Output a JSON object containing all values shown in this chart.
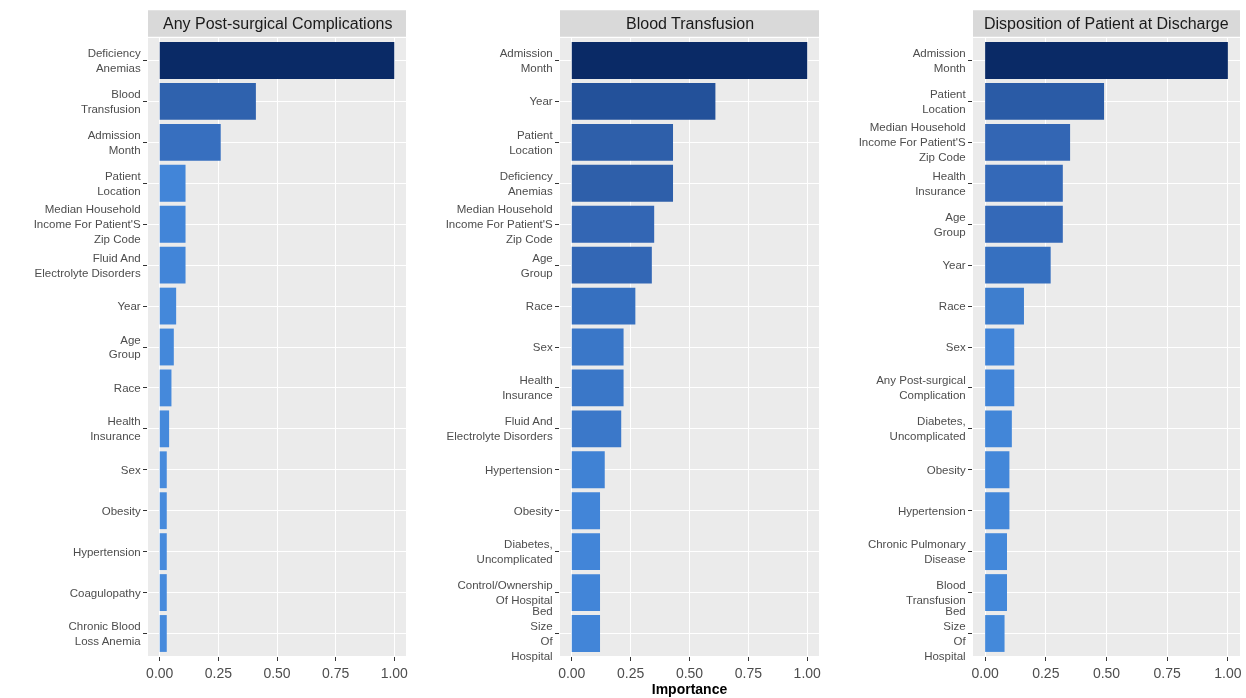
{
  "chart_data": [
    {
      "type": "bar",
      "orientation": "horizontal",
      "title": "Any Post-surgical Complications",
      "categories": [
        "Deficiency\nAnemias",
        "Blood\nTransfusion",
        "Admission\nMonth",
        "Patient\nLocation",
        "Median Household\nIncome For Patient'S\nZip Code",
        "Fluid And\nElectrolyte Disorders",
        "Year",
        "Age\nGroup",
        "Race",
        "Health\nInsurance",
        "Sex",
        "Obesity",
        "Hypertension",
        "Coagulopathy",
        "Chronic Blood\nLoss Anemia"
      ],
      "values": [
        1.0,
        0.41,
        0.26,
        0.11,
        0.11,
        0.11,
        0.07,
        0.06,
        0.05,
        0.04,
        0.03,
        0.03,
        0.03,
        0.03,
        0.03
      ],
      "colors": [
        "#0a2a66",
        "#2f62ae",
        "#376fbf",
        "#4285d8",
        "#4285d8",
        "#4285d8",
        "#4488da",
        "#4488da",
        "#4589db",
        "#4589db",
        "#468adc",
        "#468adc",
        "#468adc",
        "#468adc",
        "#468adc"
      ],
      "xlim": [
        -0.05,
        1.05
      ],
      "xticks": [
        {
          "value": 0,
          "label": "0.00"
        },
        {
          "value": 0.25,
          "label": "0.25"
        },
        {
          "value": 0.5,
          "label": "0.50"
        },
        {
          "value": 0.75,
          "label": "0.75"
        },
        {
          "value": 1,
          "label": "1.00"
        }
      ],
      "grid": true
    },
    {
      "type": "bar",
      "orientation": "horizontal",
      "title": "Blood Transfusion",
      "xlabel": "Importance",
      "categories": [
        "Admission\nMonth",
        "Year",
        "Patient\nLocation",
        "Deficiency\nAnemias",
        "Median Household\nIncome For Patient'S\nZip Code",
        "Age\nGroup",
        "Race",
        "Sex",
        "Health\nInsurance",
        "Fluid And\nElectrolyte Disorders",
        "Hypertension",
        "Obesity",
        "Diabetes,\nUncomplicated",
        "Control/Ownership\nOf Hospital",
        "Bed\nSize\nOf\nHospital"
      ],
      "values": [
        1.0,
        0.61,
        0.43,
        0.43,
        0.35,
        0.34,
        0.27,
        0.22,
        0.22,
        0.21,
        0.14,
        0.12,
        0.12,
        0.12,
        0.12
      ],
      "colors": [
        "#0a2a66",
        "#23519a",
        "#2e5faa",
        "#2e5faa",
        "#3366b4",
        "#3367b5",
        "#3670c0",
        "#3a77c8",
        "#3a77c8",
        "#3b78c9",
        "#4082d4",
        "#4285d8",
        "#4285d8",
        "#4285d8",
        "#4285d8"
      ],
      "xlim": [
        -0.05,
        1.05
      ],
      "xticks": [
        {
          "value": 0,
          "label": "0.00"
        },
        {
          "value": 0.25,
          "label": "0.25"
        },
        {
          "value": 0.5,
          "label": "0.50"
        },
        {
          "value": 0.75,
          "label": "0.75"
        },
        {
          "value": 1,
          "label": "1.00"
        }
      ],
      "grid": true
    },
    {
      "type": "bar",
      "orientation": "horizontal",
      "title": "Disposition of Patient at Discharge",
      "categories": [
        "Admission\nMonth",
        "Patient\nLocation",
        "Median Household\nIncome For Patient'S\nZip Code",
        "Health\nInsurance",
        "Age\nGroup",
        "Year",
        "Race",
        "Sex",
        "Any Post-surgical\nComplication",
        "Diabetes,\nUncomplicated",
        "Obesity",
        "Hypertension",
        "Chronic Pulmonary\nDisease",
        "Blood\nTransfusion",
        "Bed\nSize\nOf\nHospital"
      ],
      "values": [
        1.0,
        0.49,
        0.35,
        0.32,
        0.32,
        0.27,
        0.16,
        0.12,
        0.12,
        0.11,
        0.1,
        0.1,
        0.09,
        0.09,
        0.08
      ],
      "colors": [
        "#0a2a66",
        "#2a5ba6",
        "#3366b4",
        "#3469b8",
        "#3469b8",
        "#3670c0",
        "#3e7ece",
        "#4285d8",
        "#4285d8",
        "#4286d8",
        "#4387d9",
        "#4387d9",
        "#4388da",
        "#4388da",
        "#4489da"
      ],
      "xlim": [
        -0.05,
        1.05
      ],
      "xticks": [
        {
          "value": 0,
          "label": "0.00"
        },
        {
          "value": 0.25,
          "label": "0.25"
        },
        {
          "value": 0.5,
          "label": "0.50"
        },
        {
          "value": 0.75,
          "label": "0.75"
        },
        {
          "value": 1,
          "label": "1.00"
        }
      ],
      "grid": true
    }
  ]
}
